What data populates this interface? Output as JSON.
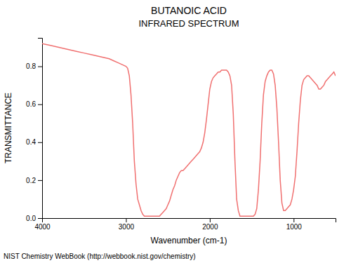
{
  "chart_data": {
    "type": "line",
    "title": "BUTANOIC ACID",
    "subtitle": "INFRARED SPECTRUM",
    "x_label": "Wavenumber (cm-1)",
    "y_label": "TRANSMITTANCE",
    "annotations": [
      "NIST Chemistry WebBook (http://webbook.nist.gov/chemistry)"
    ],
    "color": "#f07070",
    "grid": false,
    "xlim": [
      4000,
      500
    ],
    "ylim": [
      0.0,
      0.95
    ],
    "xticks": [
      4000,
      3000,
      2000,
      1000
    ],
    "yticks": [
      {
        "value": 0.0,
        "label": "0.0"
      },
      0.2,
      0.4,
      0.6,
      0.8
    ],
    "x": [
      4000,
      3900,
      3800,
      3700,
      3600,
      3500,
      3400,
      3300,
      3200,
      3150,
      3100,
      3050,
      3000,
      2980,
      2960,
      2940,
      2920,
      2900,
      2880,
      2860,
      2840,
      2820,
      2800,
      2780,
      2760,
      2740,
      2720,
      2700,
      2680,
      2660,
      2640,
      2620,
      2600,
      2580,
      2560,
      2540,
      2520,
      2500,
      2480,
      2460,
      2440,
      2420,
      2400,
      2380,
      2360,
      2340,
      2320,
      2300,
      2280,
      2260,
      2240,
      2220,
      2200,
      2180,
      2160,
      2140,
      2120,
      2100,
      2080,
      2060,
      2040,
      2020,
      2000,
      1980,
      1960,
      1940,
      1920,
      1900,
      1880,
      1860,
      1840,
      1820,
      1800,
      1780,
      1760,
      1740,
      1720,
      1700,
      1680,
      1660,
      1640,
      1620,
      1600,
      1580,
      1560,
      1540,
      1520,
      1500,
      1480,
      1460,
      1440,
      1420,
      1400,
      1380,
      1360,
      1340,
      1320,
      1300,
      1280,
      1260,
      1240,
      1220,
      1200,
      1180,
      1160,
      1140,
      1120,
      1100,
      1080,
      1060,
      1040,
      1020,
      1000,
      980,
      960,
      940,
      920,
      900,
      880,
      860,
      840,
      820,
      800,
      780,
      760,
      740,
      720,
      700,
      680,
      660,
      640,
      620,
      600,
      580,
      560,
      540,
      520,
      500
    ],
    "values": [
      0.92,
      0.91,
      0.9,
      0.89,
      0.88,
      0.87,
      0.86,
      0.85,
      0.84,
      0.83,
      0.82,
      0.81,
      0.8,
      0.79,
      0.75,
      0.65,
      0.5,
      0.3,
      0.18,
      0.1,
      0.07,
      0.04,
      0.02,
      0.01,
      0.01,
      0.01,
      0.01,
      0.01,
      0.01,
      0.01,
      0.01,
      0.01,
      0.01,
      0.02,
      0.03,
      0.04,
      0.05,
      0.07,
      0.09,
      0.12,
      0.15,
      0.17,
      0.2,
      0.22,
      0.24,
      0.25,
      0.25,
      0.26,
      0.27,
      0.28,
      0.29,
      0.3,
      0.31,
      0.32,
      0.33,
      0.34,
      0.35,
      0.37,
      0.4,
      0.45,
      0.52,
      0.6,
      0.68,
      0.72,
      0.74,
      0.75,
      0.76,
      0.77,
      0.77,
      0.78,
      0.78,
      0.78,
      0.78,
      0.77,
      0.75,
      0.7,
      0.55,
      0.3,
      0.1,
      0.04,
      0.01,
      0.01,
      0.01,
      0.01,
      0.01,
      0.01,
      0.01,
      0.01,
      0.01,
      0.02,
      0.05,
      0.15,
      0.3,
      0.5,
      0.65,
      0.72,
      0.75,
      0.77,
      0.78,
      0.78,
      0.76,
      0.7,
      0.58,
      0.4,
      0.2,
      0.08,
      0.04,
      0.04,
      0.05,
      0.06,
      0.07,
      0.1,
      0.15,
      0.22,
      0.35,
      0.5,
      0.62,
      0.7,
      0.73,
      0.74,
      0.75,
      0.75,
      0.74,
      0.73,
      0.72,
      0.71,
      0.7,
      0.68,
      0.68,
      0.69,
      0.7,
      0.72,
      0.73,
      0.74,
      0.75,
      0.76,
      0.77,
      0.75
    ]
  }
}
